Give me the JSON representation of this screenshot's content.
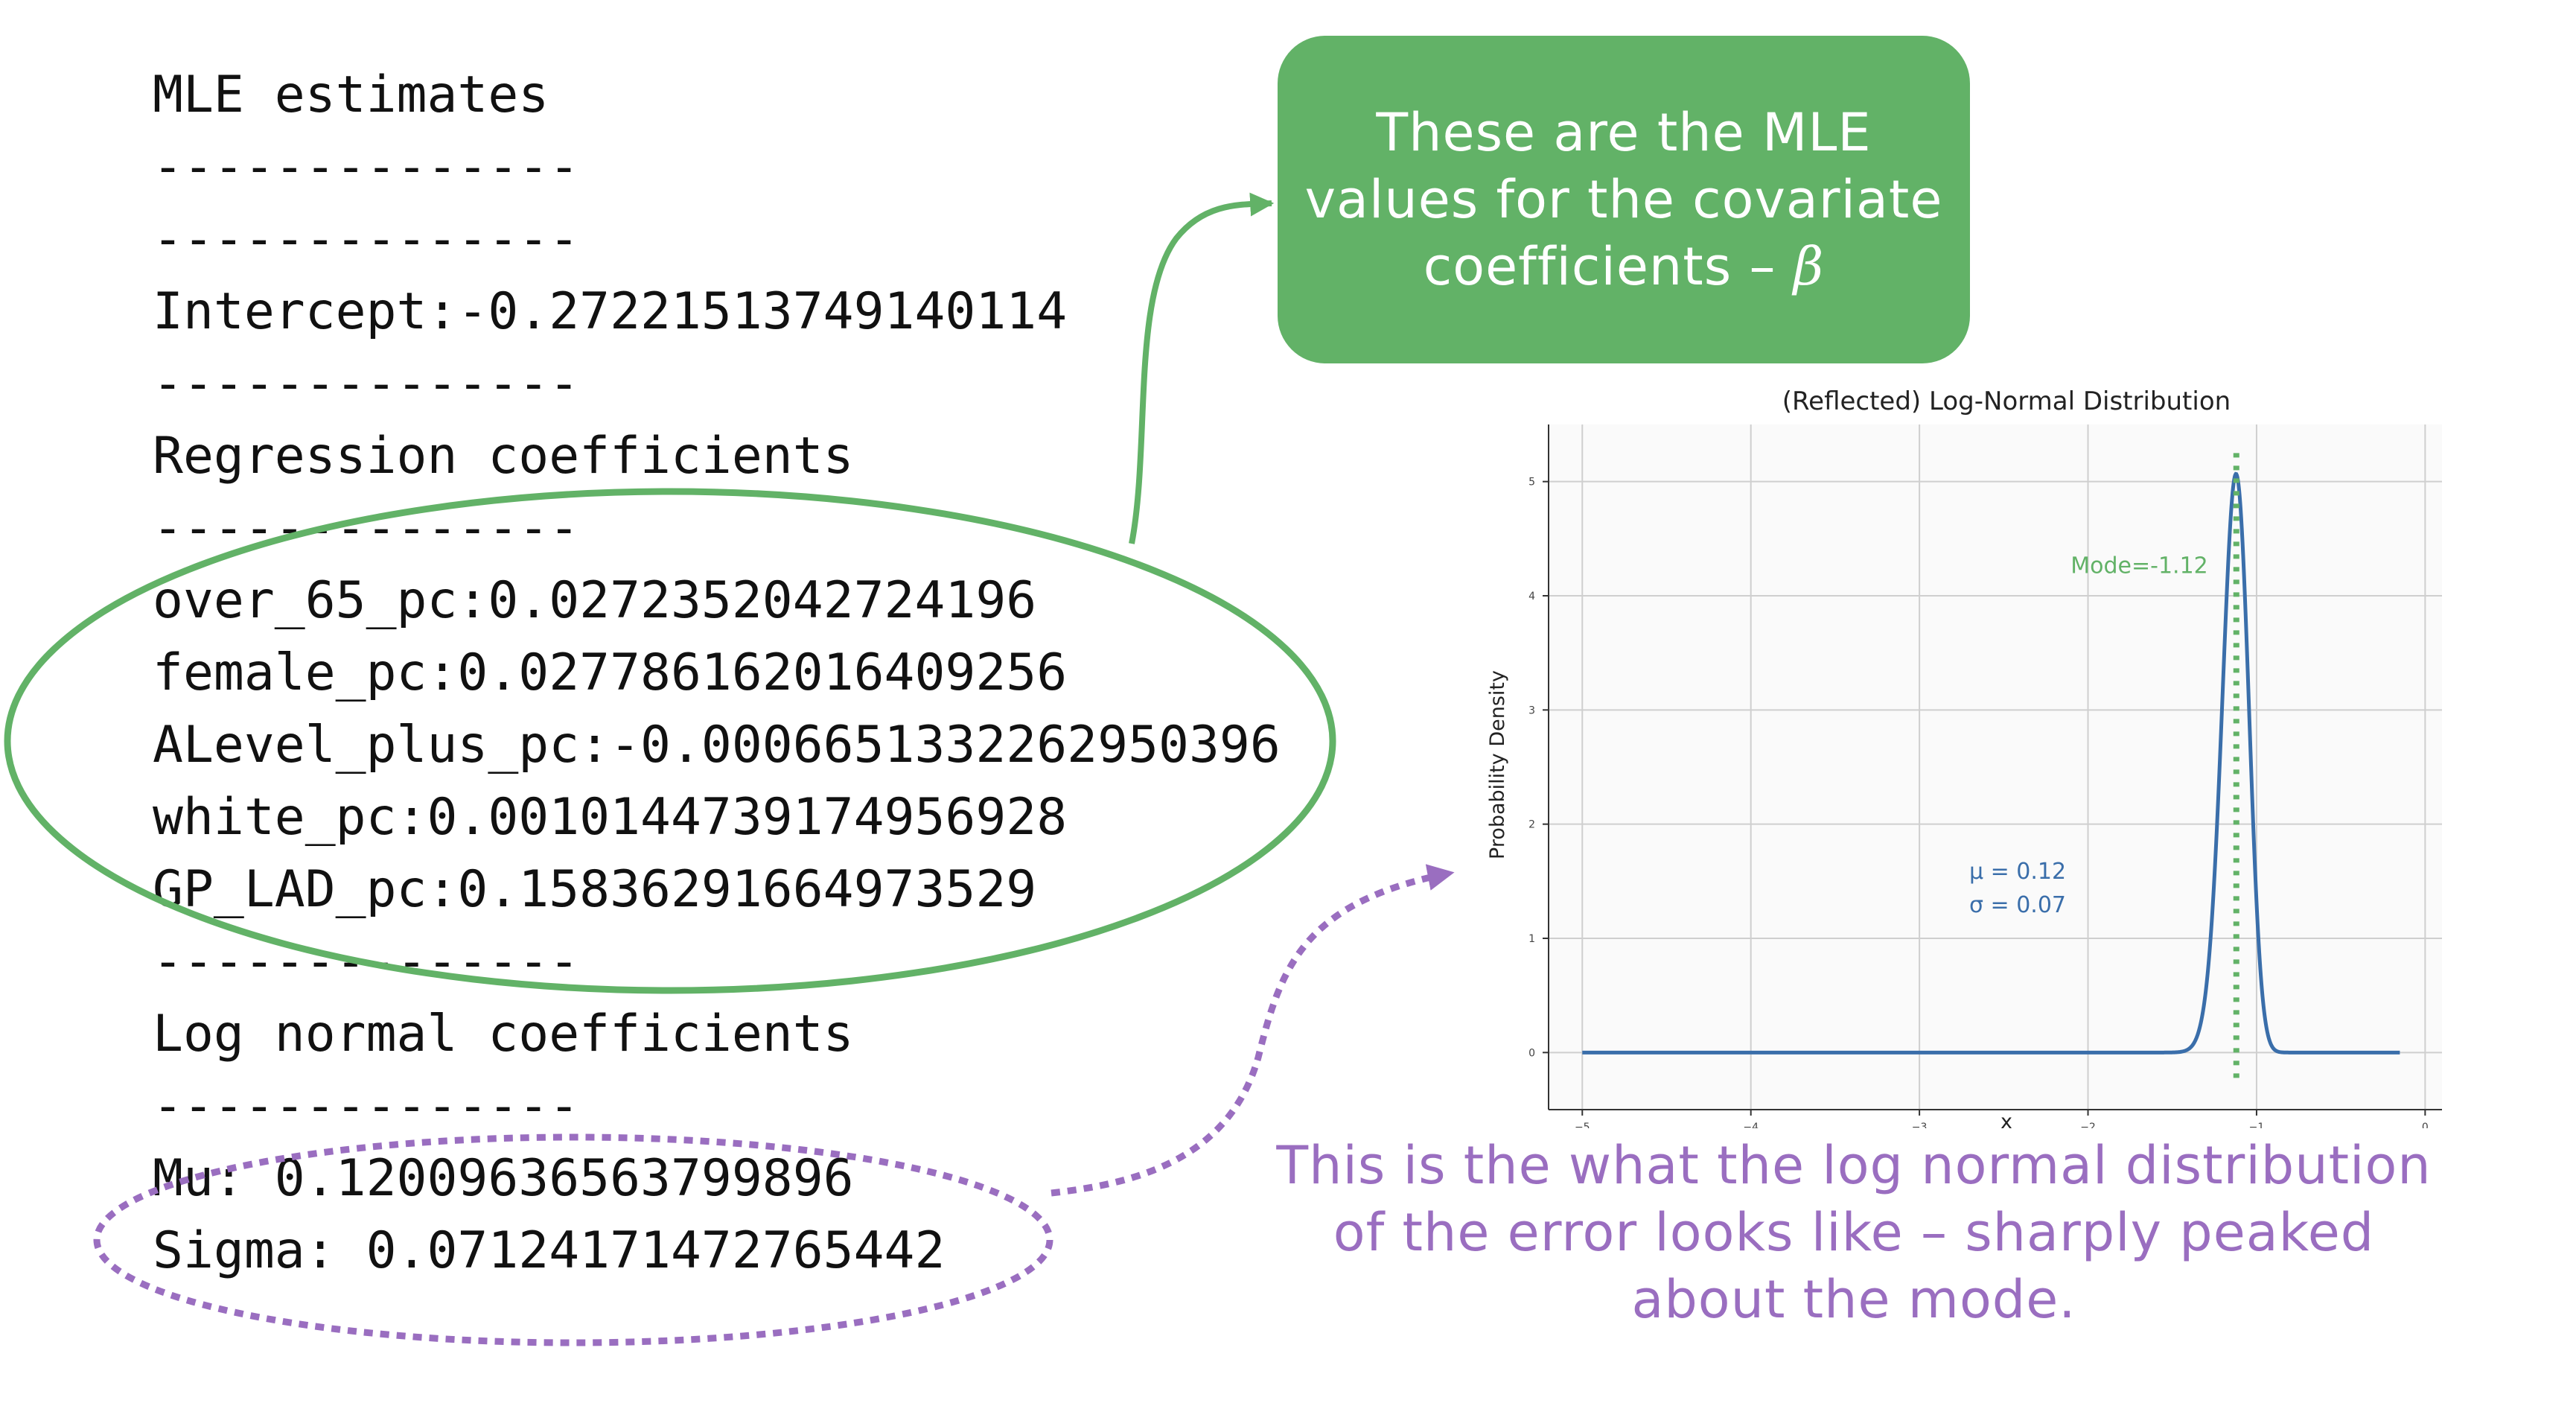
{
  "estimates": {
    "heading": "MLE estimates",
    "separator": "--------------",
    "intercept": "Intercept:-0.27221513749140114",
    "regression_heading": "Regression coefficients",
    "coefficients": [
      "over_65_pc:0.0272352042724196",
      "female_pc:0.027786162016409256",
      "ALevel_plus_pc:-0.0006651332262950396",
      "white_pc:0.0010144739174956928",
      "GP_LAD_pc:0.15836291664973529"
    ],
    "lognormal_heading": "Log normal coefficients",
    "mu": "Mu: 0.12009636563799896",
    "sigma": "Sigma: 0.07124171472765442"
  },
  "callout": {
    "lines": [
      "These are the MLE",
      "values for the covariate",
      "coefficients –"
    ],
    "symbol": "β"
  },
  "caption": {
    "lines": [
      "This is the what the log normal distribution",
      "of the error looks like – sharply peaked",
      "about the mode."
    ]
  },
  "colors": {
    "green": "#62b267",
    "purple": "#9a6ec0",
    "curve": "#3a6eaa"
  },
  "chart_data": {
    "type": "line",
    "title": "(Reflected) Log-Normal Distribution",
    "xlabel": "x",
    "ylabel": "Probability Density",
    "xlim": [
      -5.2,
      0.1
    ],
    "ylim": [
      -0.5,
      5.5
    ],
    "x_ticks": [
      -5,
      -4,
      -3,
      -2,
      -1,
      0
    ],
    "y_ticks": [
      0,
      1,
      2,
      3,
      4,
      5
    ],
    "x_tick_labels": [
      "−5",
      "−4",
      "−3",
      "−2",
      "−1",
      "0"
    ],
    "y_tick_labels": [
      "0",
      "1",
      "2",
      "3",
      "4",
      "5"
    ],
    "grid": true,
    "series": [
      {
        "mu": 0.12,
        "sigma": 0.07,
        "x_range": [
          -5.0,
          -0.15
        ],
        "reflected": true
      }
    ],
    "mode": {
      "x": -1.12,
      "label": "Mode=-1.12"
    },
    "annotations": {
      "mu_text": "μ = 0.12",
      "sigma_text": "σ = 0.07"
    }
  }
}
